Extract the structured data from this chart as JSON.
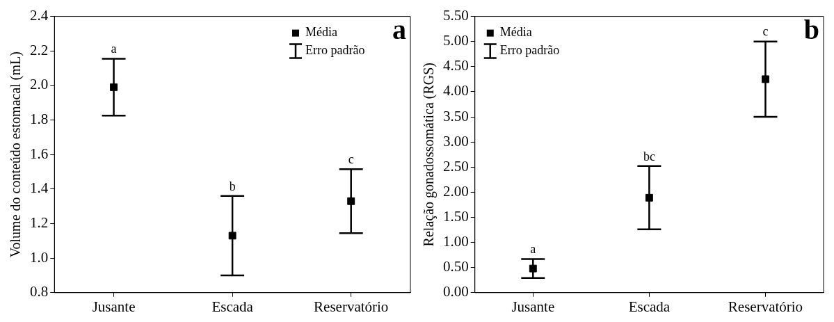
{
  "chart_data": [
    {
      "type": "scatter",
      "categories": [
        "Jusante",
        "Escada",
        "Reservatório"
      ],
      "ylabel": "Volume do conteúdo estomacal (mL)",
      "ylim": [
        0.8,
        2.4
      ],
      "yticks": [
        {
          "value": 0.8,
          "label": "0.8"
        },
        {
          "value": 1,
          "label": "1.0"
        },
        1.2,
        1.4,
        1.6,
        1.8,
        {
          "value": 2,
          "label": "2.0"
        },
        2.2,
        2.4
      ],
      "marker": "square",
      "grid": false,
      "legend": "top right",
      "series": [
        {
          "name": "Média",
          "color": "#000000",
          "values": [
            1.99,
            1.13,
            1.33
          ],
          "errors": [
            0.165,
            0.23,
            0.185
          ]
        }
      ],
      "annotations": [
        "a",
        "Erro padrão",
        {
          "text": "a",
          "x": "Jusante",
          "y": 2.155
        },
        {
          "text": "b",
          "x": "Escada",
          "y": 1.36
        },
        {
          "text": "c",
          "x": "Reservatório",
          "y": 1.515
        }
      ]
    },
    {
      "type": "scatter",
      "categories": [
        "Jusante",
        "Escada",
        "Reservatório"
      ],
      "ylabel": "Relação gonadossomática (RGS)",
      "ylim": [
        0,
        5.5
      ],
      "yticks": [
        {
          "value": 0,
          "label": "0.00"
        },
        {
          "value": 0.5,
          "label": "0.50"
        },
        {
          "value": 1,
          "label": "1.00"
        },
        {
          "value": 1.5,
          "label": "1.50"
        },
        {
          "value": 2,
          "label": "2.00"
        },
        {
          "value": 2.5,
          "label": "2.50"
        },
        {
          "value": 3,
          "label": "3.00"
        },
        {
          "value": 3.5,
          "label": "3.50"
        },
        {
          "value": 4,
          "label": "4.00"
        },
        {
          "value": 4.5,
          "label": "4.50"
        },
        {
          "value": 5,
          "label": "5.00"
        },
        {
          "value": 5.5,
          "label": "5.50"
        }
      ],
      "marker": "square",
      "grid": false,
      "legend": "top left",
      "series": [
        {
          "name": "Média",
          "color": "#000000",
          "values": [
            0.48,
            1.89,
            4.25
          ],
          "errors": [
            0.19,
            0.63,
            0.75
          ]
        }
      ],
      "annotations": [
        "b",
        "Erro padrão",
        {
          "text": "a",
          "x": "Jusante",
          "y": 0.67
        },
        {
          "text": "bc",
          "x": "Escada",
          "y": 2.52
        },
        {
          "text": "c",
          "x": "Reservatório",
          "y": 5.0
        }
      ]
    }
  ]
}
